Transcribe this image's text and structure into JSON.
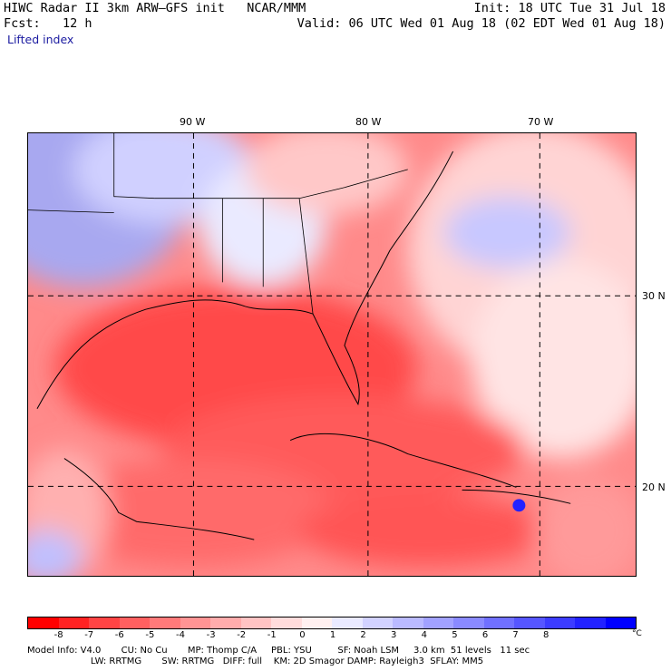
{
  "header": {
    "title": "HIWC Radar II 3km ARW–GFS init   NCAR/MMM",
    "init": "Init: 18 UTC Tue 31 Jul 18",
    "fcst": "Fcst:   12 h",
    "valid": "Valid: 06 UTC Wed 01 Aug 18 (02 EDT Wed 01 Aug 18)",
    "field": "Lifted index"
  },
  "map": {
    "lon_labels": [
      "90 W",
      "80 W",
      "70 W"
    ],
    "lat_labels": [
      "30 N",
      "20 N"
    ]
  },
  "colorbar": {
    "colors": [
      "#ff0000",
      "#ff2222",
      "#ff4444",
      "#ff6060",
      "#ff7a7a",
      "#ff9494",
      "#ffacac",
      "#ffc4c4",
      "#ffdcdc",
      "#fff0f0",
      "#eaeaff",
      "#d2d2ff",
      "#babaff",
      "#a2a2ff",
      "#8a8aff",
      "#7070ff",
      "#5656ff",
      "#3c3cff",
      "#2222ff",
      "#0000ff"
    ],
    "ticks": [
      "-8",
      "-7",
      "-6",
      "-5",
      "-4",
      "-3",
      "-2",
      "-1",
      "0",
      "1",
      "2",
      "3",
      "4",
      "5",
      "6",
      "7",
      "8"
    ],
    "unit": "°C"
  },
  "footer": {
    "line1": "Model Info: V4.0       CU: No Cu       MP: Thomp C/A     PBL: YSU         SF: Noah LSM     3.0 km  51 levels   11 sec",
    "line2": "                      LW: RRTMG       SW: RRTMG   DIFF: full    KM: 2D Smagor DAMP: Rayleigh3  SFLAY: MM5"
  }
}
